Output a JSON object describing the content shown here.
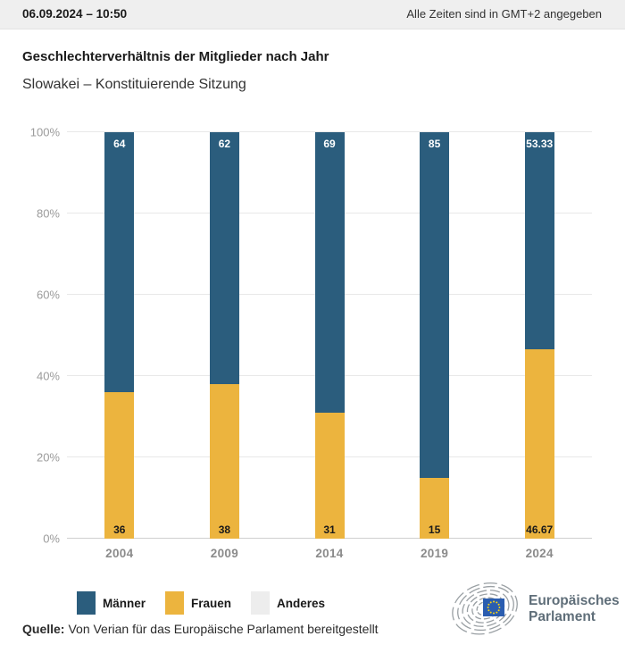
{
  "header": {
    "datetime": "06.09.2024 – 10:50",
    "timezone_note": "Alle Zeiten sind in GMT+2 angegeben"
  },
  "title": "Geschlechterverhältnis der Mitglieder nach Jahr",
  "subtitle": "Slowakei – Konstituierende Sitzung",
  "chart_data": {
    "type": "bar",
    "stacked": true,
    "title": "Geschlechterverhältnis der Mitglieder nach Jahr",
    "subtitle": "Slowakei – Konstituierende Sitzung",
    "categories": [
      "2004",
      "2009",
      "2014",
      "2019",
      "2024"
    ],
    "series": [
      {
        "name": "Männer",
        "color": "#2b5d7d",
        "label_color": "#ffffff",
        "values": [
          64,
          62,
          69,
          85,
          53.33
        ]
      },
      {
        "name": "Frauen",
        "color": "#ecb43e",
        "label_color": "#1a1a1a",
        "values": [
          36,
          38,
          31,
          15,
          46.67
        ]
      },
      {
        "name": "Anderes",
        "color": "#ededed",
        "label_color": "#1a1a1a",
        "values": [
          0,
          0,
          0,
          0,
          0
        ]
      }
    ],
    "y_ticks": [
      "0%",
      "20%",
      "40%",
      "60%",
      "80%",
      "100%"
    ],
    "ylim": [
      0,
      100
    ],
    "grid": true,
    "legend_position": "bottom"
  },
  "source": {
    "label": "Quelle:",
    "text": "Von Verian für das Europäische Parlament bereitgestellt"
  },
  "logo": {
    "line1": "Europäisches",
    "line2": "Parlament"
  }
}
